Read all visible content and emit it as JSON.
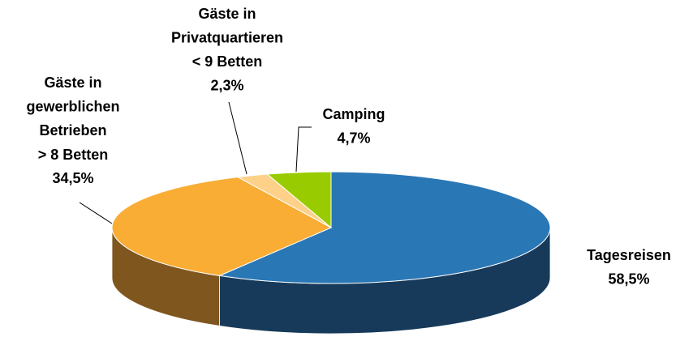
{
  "chart_data": {
    "type": "pie",
    "categories": [
      "Tagesreisen",
      "Gäste in\ngewerblichen\nBetrieben\n> 8 Betten",
      "Gäste in\nPrivatquartieren\n< 9 Betten",
      "Camping"
    ],
    "values": [
      58.5,
      34.5,
      2.3,
      4.7
    ],
    "value_labels": [
      "58,5%",
      "34,5%",
      "2,3%",
      "4,7%"
    ],
    "colors": [
      "#2a77b5",
      "#f9ad34",
      "#fdd18a",
      "#99cc00"
    ],
    "side_colors": [
      "#173a5a",
      "#7f561e",
      "#8a6f3c",
      "#557000"
    ]
  }
}
